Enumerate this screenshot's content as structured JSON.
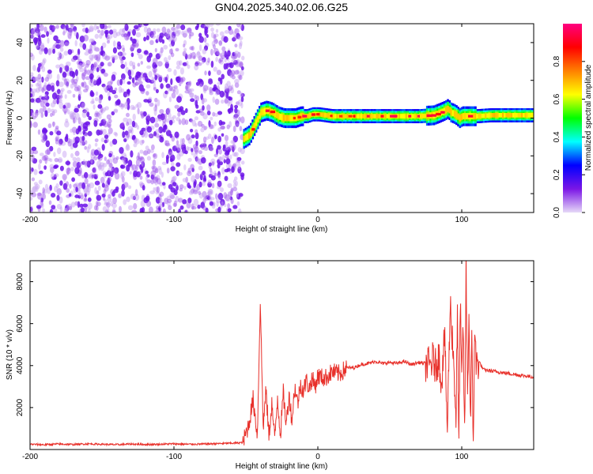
{
  "title": "GN04.2025.340.02.06.G25",
  "chart_data": [
    {
      "type": "heatmap",
      "xlabel": "Height of straight line (km)",
      "ylabel": "Frequency (Hz)",
      "xlim": [
        -200,
        150
      ],
      "ylim": [
        -50,
        50
      ],
      "x_ticks": [
        -200,
        -100,
        0,
        100
      ],
      "y_ticks": [
        -40,
        -20,
        0,
        20,
        40
      ],
      "colorbar": {
        "label": "Normalized spectral amplitude",
        "range": [
          0.0,
          1.0
        ],
        "ticks": [
          0.0,
          0.2,
          0.4,
          0.6,
          0.8
        ],
        "colors": [
          "#e6d9f7",
          "#7b16e6",
          "#0000ff",
          "#00ffff",
          "#00ff00",
          "#ffff00",
          "#ff8000",
          "#ff0000",
          "#ff0080"
        ]
      },
      "noise_region": {
        "x_from": -200,
        "x_to": -52,
        "freq_from": -50,
        "freq_to": 50,
        "amplitude": [
          0.0,
          0.15
        ]
      },
      "signal_ridge": {
        "x": [
          -52,
          -48,
          -44,
          -40,
          -36,
          -32,
          -28,
          -24,
          -20,
          -16,
          -12,
          -8,
          -4,
          0,
          10,
          20,
          30,
          40,
          50,
          60,
          70,
          80,
          85,
          88,
          90,
          92,
          95,
          98,
          100,
          105,
          110,
          120,
          130,
          140,
          150
        ],
        "freq": [
          -11,
          -9,
          -3,
          3,
          4,
          3,
          1,
          0,
          0,
          0,
          1,
          1,
          2,
          2,
          1,
          1,
          1,
          1,
          1,
          1,
          1,
          1.5,
          3,
          4,
          5,
          3,
          2,
          0,
          1,
          1,
          1,
          1.5,
          1.5,
          1.5,
          1.5
        ],
        "peak_amplitude": 0.95
      }
    },
    {
      "type": "line",
      "xlabel": "Height of straight line (km)",
      "ylabel": "SNR (10 * v/v)",
      "xlim": [
        -200,
        150
      ],
      "ylim": [
        0,
        9000
      ],
      "x_ticks": [
        -200,
        -100,
        0,
        100
      ],
      "y_ticks": [
        2000,
        4000,
        6000,
        8000
      ],
      "color": "#e8302a",
      "series": [
        {
          "x": [
            -200,
            -190,
            -180,
            -170,
            -160,
            -150,
            -140,
            -130,
            -120,
            -110,
            -100,
            -90,
            -80,
            -70,
            -60,
            -52,
            -48,
            -45,
            -42,
            -40,
            -38,
            -36,
            -34,
            -32,
            -30,
            -28,
            -26,
            -24,
            -22,
            -20,
            -18,
            -16,
            -14,
            -12,
            -10,
            -8,
            -6,
            -4,
            -2,
            0,
            5,
            10,
            15,
            20,
            25,
            30,
            35,
            40,
            45,
            50,
            55,
            60,
            65,
            70,
            75,
            78,
            80,
            82,
            84,
            86,
            88,
            90,
            92,
            94,
            96,
            97,
            98,
            99,
            100,
            101,
            102,
            103,
            104,
            105,
            106,
            107,
            108,
            109,
            110,
            112,
            115,
            120,
            125,
            130,
            135,
            140,
            145,
            150
          ],
          "y": [
            250,
            230,
            260,
            240,
            270,
            250,
            230,
            260,
            240,
            250,
            270,
            250,
            260,
            280,
            300,
            330,
            1200,
            2400,
            700,
            7100,
            1100,
            2800,
            600,
            2200,
            500,
            2500,
            700,
            2700,
            1200,
            2600,
            1400,
            3000,
            2200,
            3100,
            2800,
            3300,
            2900,
            3400,
            3000,
            3500,
            3400,
            3700,
            3600,
            3900,
            3900,
            4050,
            4100,
            4200,
            4100,
            4150,
            4100,
            4200,
            4050,
            4150,
            4100,
            4000,
            4300,
            3900,
            4500,
            3200,
            5500,
            1000,
            6900,
            4800,
            1500,
            6500,
            200,
            7100,
            3000,
            6000,
            400,
            8900,
            2500,
            6500,
            1500,
            5000,
            100,
            6100,
            4000,
            4200,
            3800,
            3750,
            3700,
            3650,
            3600,
            3550,
            3500,
            3450
          ]
        }
      ]
    }
  ]
}
